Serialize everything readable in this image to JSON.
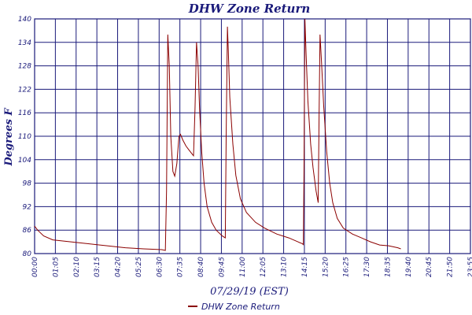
{
  "chart_data": {
    "type": "line",
    "title": "DHW Zone Return",
    "xlabel": "07/29/19 (EST)",
    "ylabel": "Degrees F",
    "ylim": [
      80,
      140
    ],
    "yticks": [
      80,
      86,
      92,
      98,
      104,
      110,
      116,
      122,
      128,
      134,
      140
    ],
    "xlim": [
      0,
      1440
    ],
    "x_tick_labels": [
      "00:00",
      "01:05",
      "02:10",
      "03:15",
      "04:20",
      "05:25",
      "06:30",
      "07:35",
      "08:40",
      "09:45",
      "11:00",
      "12:05",
      "13:10",
      "14:15",
      "15:20",
      "16:25",
      "17:30",
      "18:35",
      "19:40",
      "20:45",
      "21:50",
      "23:55"
    ],
    "grid": true,
    "legend_position": "bottom",
    "colors": {
      "line": "#8b0000",
      "grid": "#1a1a7a",
      "text": "#1a1a7a"
    },
    "series": [
      {
        "name": "DHW Zone Return",
        "points": [
          [
            0,
            87
          ],
          [
            10,
            86
          ],
          [
            30,
            84.5
          ],
          [
            60,
            83.5
          ],
          [
            120,
            83
          ],
          [
            180,
            82.5
          ],
          [
            240,
            82
          ],
          [
            300,
            81.5
          ],
          [
            360,
            81.2
          ],
          [
            420,
            81
          ],
          [
            432,
            80.8
          ],
          [
            436,
            96
          ],
          [
            440,
            136
          ],
          [
            445,
            128
          ],
          [
            450,
            110
          ],
          [
            457,
            101
          ],
          [
            463,
            99.8
          ],
          [
            470,
            103
          ],
          [
            477,
            110
          ],
          [
            482,
            110.5
          ],
          [
            490,
            109
          ],
          [
            500,
            107.5
          ],
          [
            510,
            106.5
          ],
          [
            520,
            105.5
          ],
          [
            525,
            105
          ],
          [
            530,
            117
          ],
          [
            535,
            134
          ],
          [
            540,
            128
          ],
          [
            545,
            117
          ],
          [
            552,
            106
          ],
          [
            560,
            98
          ],
          [
            570,
            92
          ],
          [
            585,
            88
          ],
          [
            600,
            86
          ],
          [
            620,
            84.5
          ],
          [
            630,
            84
          ],
          [
            633,
            110
          ],
          [
            637,
            138
          ],
          [
            640,
            132
          ],
          [
            645,
            120
          ],
          [
            655,
            108
          ],
          [
            665,
            100
          ],
          [
            680,
            94
          ],
          [
            700,
            90.5
          ],
          [
            730,
            88
          ],
          [
            760,
            86.5
          ],
          [
            800,
            85
          ],
          [
            840,
            84
          ],
          [
            870,
            83
          ],
          [
            885,
            82.5
          ],
          [
            888,
            82.3
          ],
          [
            890,
            100
          ],
          [
            893,
            140
          ],
          [
            897,
            131
          ],
          [
            903,
            119
          ],
          [
            912,
            108
          ],
          [
            920,
            102
          ],
          [
            930,
            96
          ],
          [
            937,
            93
          ],
          [
            940,
            115
          ],
          [
            943,
            136
          ],
          [
            948,
            129
          ],
          [
            955,
            118
          ],
          [
            965,
            106
          ],
          [
            975,
            98
          ],
          [
            985,
            93
          ],
          [
            1000,
            89
          ],
          [
            1020,
            86.5
          ],
          [
            1050,
            85
          ],
          [
            1080,
            84
          ],
          [
            1110,
            83
          ],
          [
            1140,
            82.2
          ],
          [
            1170,
            82
          ],
          [
            1200,
            81.5
          ],
          [
            1210,
            81.2
          ]
        ]
      }
    ]
  }
}
